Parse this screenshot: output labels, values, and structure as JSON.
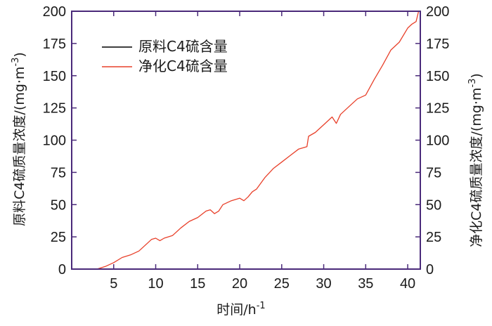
{
  "chart_data": {
    "type": "line",
    "xlabel": "时间/h",
    "xlabel_sup": "-1",
    "ylabel_left": "原料C4硫质量浓度/(mg·m",
    "ylabel_left_sup": "-3",
    "ylabel_left_end": ")",
    "ylabel_right": "净化C4硫质量浓度/(mg·m",
    "ylabel_right_sup": "-3",
    "ylabel_right_end": ")",
    "xlim": [
      0,
      41.5
    ],
    "ylim": [
      0,
      200
    ],
    "x_ticks": [
      5,
      10,
      15,
      20,
      25,
      30,
      35,
      40
    ],
    "y_ticks": [
      0,
      25,
      50,
      75,
      100,
      125,
      150,
      175,
      200
    ],
    "legend_position": "top-left",
    "series": [
      {
        "name": "原料C4硫含量",
        "color": "#000000",
        "x": [
          0,
          41.5
        ],
        "y": [
          200,
          200
        ]
      },
      {
        "name": "净化C4硫含量",
        "color": "#e8402a",
        "x": [
          0,
          3,
          4,
          5,
          6,
          7,
          8,
          9,
          9.5,
          10,
          10.5,
          11,
          12,
          13,
          14,
          15,
          16,
          16.5,
          17,
          17.5,
          18,
          19,
          20,
          20.5,
          21,
          21.5,
          22,
          23,
          24,
          25,
          26,
          27,
          28,
          28.2,
          29,
          30,
          31,
          31.5,
          32,
          33,
          34,
          35,
          36,
          37,
          38,
          39,
          40,
          40.5,
          41,
          41.3
        ],
        "y": [
          0,
          0,
          2,
          5,
          9,
          11,
          14,
          20,
          23,
          24,
          22,
          24,
          26,
          32,
          37,
          40,
          45,
          46,
          43,
          45,
          50,
          53,
          55,
          53,
          56,
          60,
          62,
          71,
          78,
          83,
          88,
          93,
          95,
          103,
          106,
          112,
          118,
          113,
          120,
          126,
          132,
          135,
          147,
          158,
          170,
          176,
          187,
          190,
          192,
          200
        ]
      }
    ]
  }
}
